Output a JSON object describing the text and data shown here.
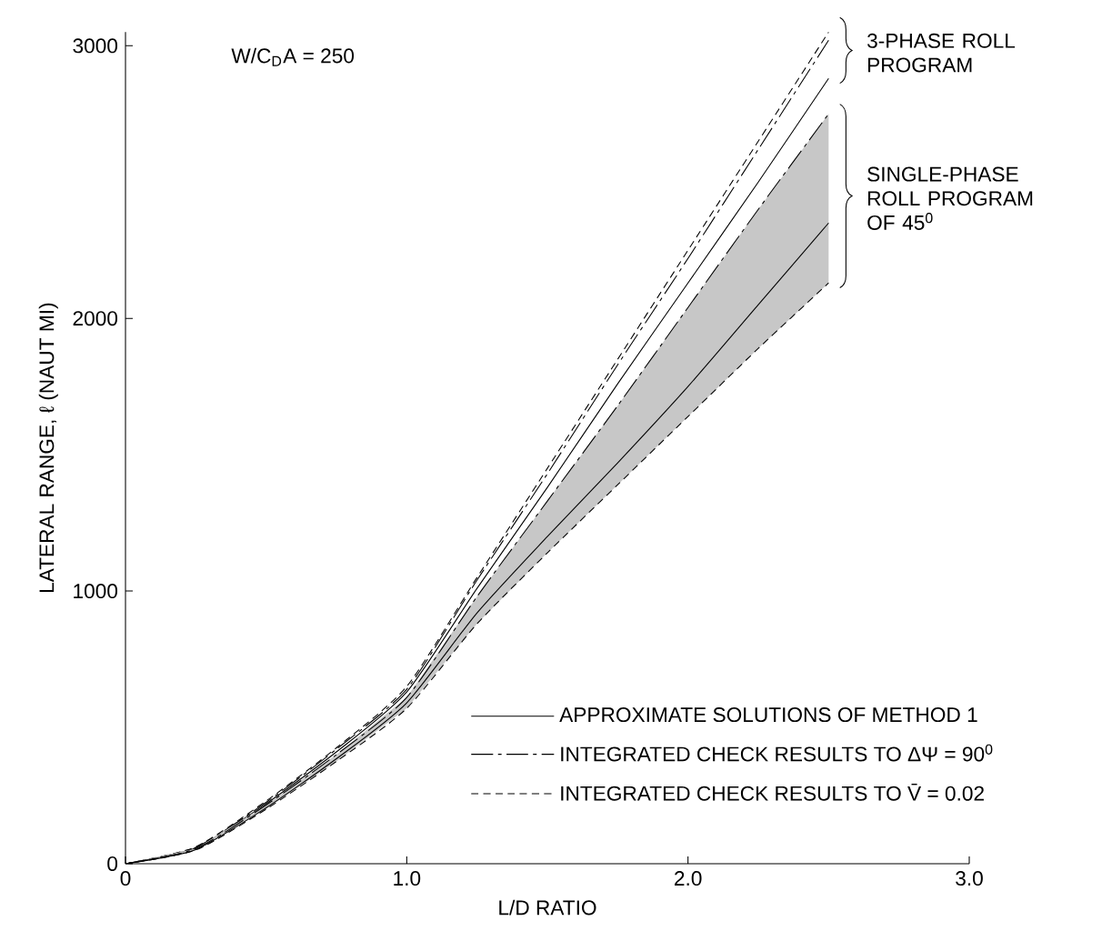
{
  "chart_data": {
    "type": "line",
    "xlabel": "L/D RATIO",
    "ylabel": "LATERAL RANGE, ℓ (NAUT MI)",
    "x": [
      0,
      0.25,
      0.5,
      0.75,
      1.0,
      1.25,
      1.5,
      1.75,
      2.0,
      2.25,
      2.5
    ],
    "series": [
      {
        "name": "APPROXIMATE SOLUTIONS OF METHOD 1",
        "color": "#000000",
        "line_style": "solid",
        "values": [
          0,
          58,
          220,
          410,
          630,
          1010,
          1380,
          1760,
          2130,
          2500,
          2880
        ]
      },
      {
        "name": "INTEGRATED CHECK RESULTS TO ΔΨ = 90$^{0}$",
        "color": "#000000",
        "line_style": "dashed",
        "values": [
          0,
          60,
          225,
          420,
          640,
          1040,
          1430,
          1830,
          2220,
          2620,
          3020
        ]
      },
      {
        "name": "INTEGRATED CHECK RESULTS TO V̄ = 0.02",
        "color": "#000000",
        "line_style": "dotted",
        "values": [
          0,
          62,
          230,
          425,
          650,
          1050,
          1450,
          1850,
          2250,
          2650,
          3050
        ]
      },
      {
        "color": "#000000",
        "line_style": "solid",
        "values": [
          0,
          52,
          205,
          385,
          590,
          920,
          1200,
          1470,
          1750,
          2050,
          2350
        ],
        "lower": [
          0,
          50,
          200,
          375,
          570,
          880,
          1140,
          1390,
          1640,
          1890,
          2130
        ],
        "upper": [
          0,
          55,
          215,
          400,
          610,
          980,
          1330,
          1680,
          2040,
          2400,
          2750
        ]
      },
      {
        "color": "#000000",
        "line_style": "dashed",
        "values": [
          0,
          55,
          215,
          400,
          610,
          980,
          1330,
          1680,
          2040,
          2400,
          2750
        ]
      },
      {
        "color": "#000000",
        "line_style": "dotted",
        "values": [
          0,
          50,
          200,
          375,
          570,
          880,
          1140,
          1390,
          1640,
          1890,
          2130
        ]
      }
    ],
    "xlim": [
      0,
      3
    ],
    "ylim": [
      0,
      3050
    ],
    "xticks": [
      0,
      {
        "value": 1,
        "label": "1.0"
      },
      {
        "value": 2,
        "label": "2.0"
      },
      {
        "value": 3,
        "label": "3.0"
      }
    ],
    "yticks": [
      0,
      1000,
      2000,
      3000
    ],
    "grid": false,
    "legend": "bottom right",
    "marker": "none",
    "annotations": [
      "W/C$_{D}$A = 250",
      "3-PHASE ROLL PROGRAM",
      "SINGLE-PHASE ROLL PROGRAM OF 45$^{0}$"
    ]
  }
}
